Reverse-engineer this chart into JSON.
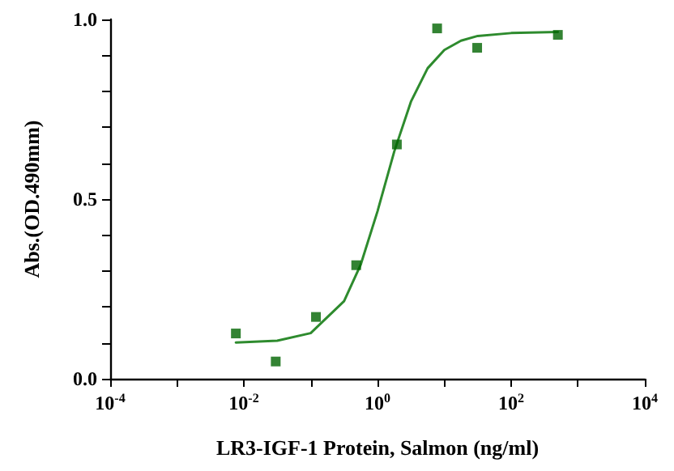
{
  "chart_data": {
    "type": "scatter",
    "xlabel": "LR3-IGF-1 Protein, Salmon (ng/ml)",
    "ylabel": "Abs.(OD.490mm)",
    "log": "x",
    "grid": false,
    "xlim": [
      0.0001,
      10000
    ],
    "xticks": [
      {
        "value": 0.0001,
        "label": "10$^{-4}$"
      },
      {
        "value": 0.001,
        "label": null
      },
      {
        "value": 0.01,
        "label": "10$^{-2}$"
      },
      {
        "value": 0.1,
        "label": null
      },
      {
        "value": 1,
        "label": "10$^{0}$"
      },
      {
        "value": 10,
        "label": null
      },
      {
        "value": 100,
        "label": "10$^{2}$"
      },
      {
        "value": 1000,
        "label": null
      },
      {
        "value": 10000,
        "label": "10$^{4}$"
      }
    ],
    "ylim": [
      0,
      1
    ],
    "yticks": [
      {
        "value": 0,
        "label": "0.0"
      },
      {
        "value": 0.1,
        "label": null
      },
      {
        "value": 0.2,
        "label": null
      },
      {
        "value": 0.3,
        "label": null
      },
      {
        "value": 0.4,
        "label": null
      },
      {
        "value": 0.5,
        "label": "0.5"
      },
      {
        "value": 0.6,
        "label": null
      },
      {
        "value": 0.7,
        "label": null
      },
      {
        "value": 0.8,
        "label": null
      },
      {
        "value": 0.9,
        "label": null
      },
      {
        "value": 1,
        "label": "1.0"
      }
    ],
    "series": [
      {
        "marker": "square",
        "color": "#006400",
        "x": [
          0.0076,
          0.03,
          0.12,
          0.48,
          1.95,
          7.8,
          31,
          500
        ],
        "values": [
          0.126,
          0.048,
          0.172,
          0.316,
          0.652,
          0.975,
          0.921,
          0.957
        ]
      },
      {
        "type": "line",
        "marker": "none",
        "line_style": "solid",
        "color": "#2e8b2e",
        "x": [
          0.0076,
          0.0316,
          0.1,
          0.316,
          0.562,
          1,
          1.778,
          3.162,
          5.623,
          10,
          17.78,
          31.62,
          100,
          500
        ],
        "values": [
          0.101,
          0.106,
          0.127,
          0.216,
          0.318,
          0.466,
          0.632,
          0.771,
          0.864,
          0.915,
          0.941,
          0.954,
          0.962,
          0.965
        ]
      }
    ]
  }
}
